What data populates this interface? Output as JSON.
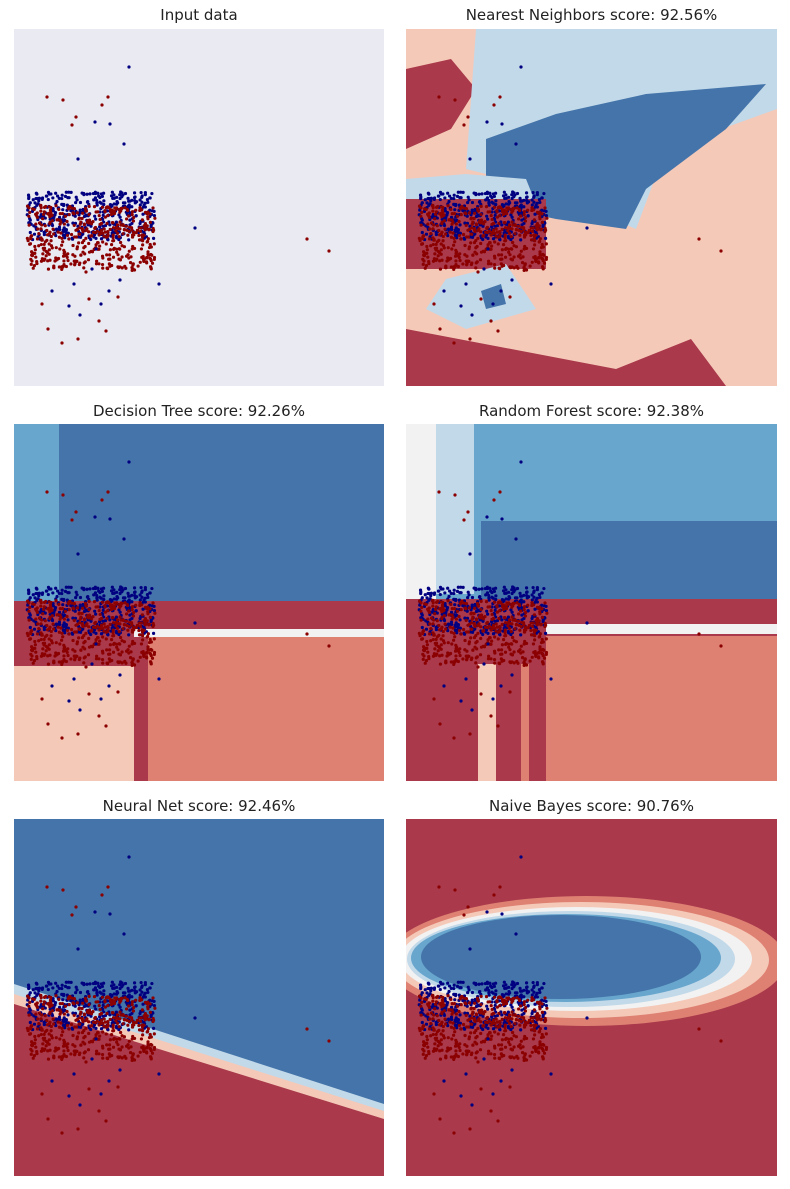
{
  "figure": {
    "colors": {
      "class_a_point": "#000080",
      "class_b_point": "#8b0000",
      "input_bg": "#eaeaf2",
      "region_dark_red": "#a9394b",
      "region_light_red": "#de8072",
      "region_pale_red": "#f5c9b8",
      "region_white": "#f2f2f2",
      "region_pale_blue": "#c2d9e9",
      "region_light_blue": "#68a6cd",
      "region_dark_blue": "#4474a9"
    }
  },
  "chart_data": [
    {
      "type": "scatter",
      "title": "Input data",
      "classifier": "none",
      "score": null,
      "xlim": [
        0,
        1
      ],
      "ylim": [
        0,
        1
      ],
      "grid": false
    },
    {
      "type": "scatter",
      "title": "Nearest Neighbors score: 92.56%",
      "classifier": "Nearest Neighbors",
      "score": 92.56,
      "xlim": [
        0,
        1
      ],
      "ylim": [
        0,
        1
      ],
      "grid": false
    },
    {
      "type": "scatter",
      "title": "Decision Tree score: 92.26%",
      "classifier": "Decision Tree",
      "score": 92.26,
      "xlim": [
        0,
        1
      ],
      "ylim": [
        0,
        1
      ],
      "grid": false
    },
    {
      "type": "scatter",
      "title": "Random Forest score: 92.38%",
      "classifier": "Random Forest",
      "score": 92.38,
      "xlim": [
        0,
        1
      ],
      "ylim": [
        0,
        1
      ],
      "grid": false
    },
    {
      "type": "scatter",
      "title": "Neural Net score: 92.46%",
      "classifier": "Neural Net",
      "score": 92.46,
      "xlim": [
        0,
        1
      ],
      "ylim": [
        0,
        1
      ],
      "grid": false
    },
    {
      "type": "scatter",
      "title": "Naive Bayes score: 90.76%",
      "classifier": "Naive Bayes",
      "score": 90.76,
      "xlim": [
        0,
        1
      ],
      "ylim": [
        0,
        1
      ],
      "grid": false
    }
  ]
}
